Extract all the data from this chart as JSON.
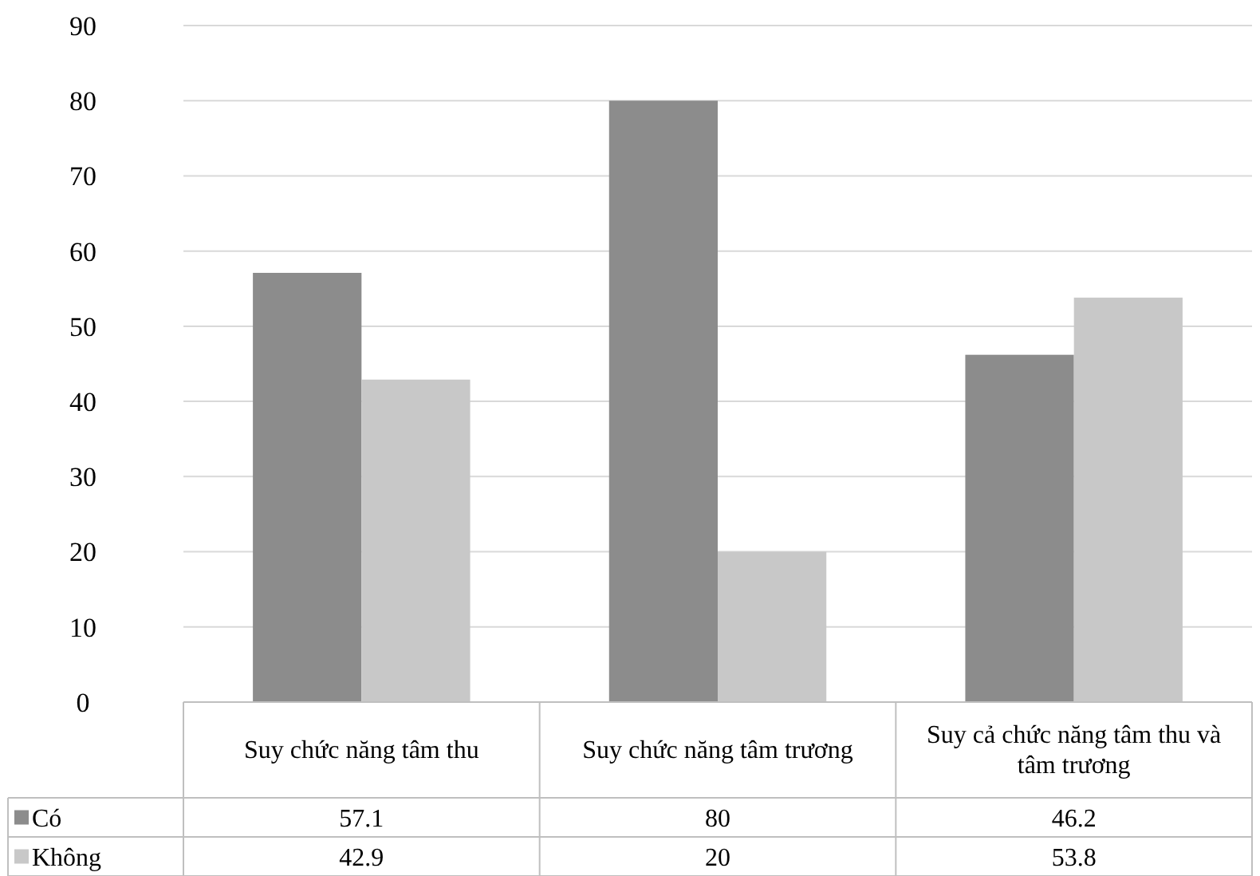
{
  "chart_data": {
    "type": "bar",
    "categories": [
      "Suy chức năng tâm thu",
      "Suy chức năng tâm trương",
      "Suy cả chức năng tâm thu và tâm trương"
    ],
    "series": [
      {
        "name": "Có",
        "color": "#8c8c8c",
        "values": [
          57.1,
          80,
          46.2
        ]
      },
      {
        "name": "Không",
        "color": "#c8c8c8",
        "values": [
          42.9,
          20,
          53.8
        ]
      }
    ],
    "ylim": [
      0,
      90
    ],
    "yticks": [
      0,
      10,
      20,
      30,
      40,
      50,
      60,
      70,
      80,
      90
    ],
    "grid": "y",
    "legend": "bottom",
    "data_labels": true
  }
}
